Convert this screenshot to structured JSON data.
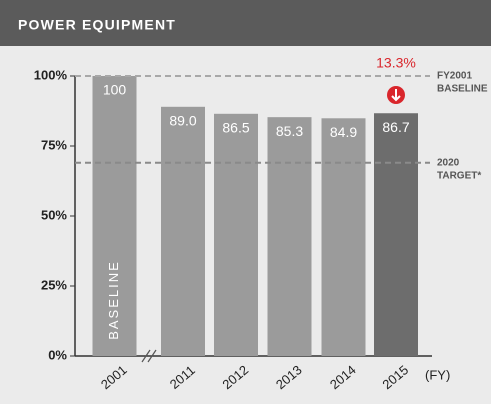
{
  "chart_data": {
    "type": "bar",
    "title": "POWER EQUIPMENT",
    "categories": [
      "2001",
      "2011",
      "2012",
      "2013",
      "2014",
      "2015"
    ],
    "values": [
      100,
      89.0,
      86.5,
      85.3,
      84.9,
      86.7
    ],
    "value_labels": [
      "100",
      "89.0",
      "86.5",
      "85.3",
      "84.9",
      "86.7"
    ],
    "colors": [
      "#9b9b9b",
      "#9b9b9b",
      "#9b9b9b",
      "#9b9b9b",
      "#9b9b9b",
      "#6d6d6d"
    ],
    "ylim": [
      0,
      100
    ],
    "yticks": [
      {
        "value": 0,
        "label": "0%"
      },
      {
        "value": 25,
        "label": "25%"
      },
      {
        "value": 50,
        "label": "50%"
      },
      {
        "value": 75,
        "label": "75%"
      },
      {
        "value": 100,
        "label": "100%"
      }
    ],
    "x_label": "(FY)",
    "bar_annotation": "BASELINE",
    "change_annotation": "13.3%",
    "reference_lines": [
      {
        "value": 100,
        "label": [
          "FY2001",
          "BASELINE"
        ],
        "color": "#a8a8a8"
      },
      {
        "value": 69,
        "label": [
          "2020",
          "TARGET*"
        ],
        "color": "#8a8a8a"
      }
    ]
  }
}
